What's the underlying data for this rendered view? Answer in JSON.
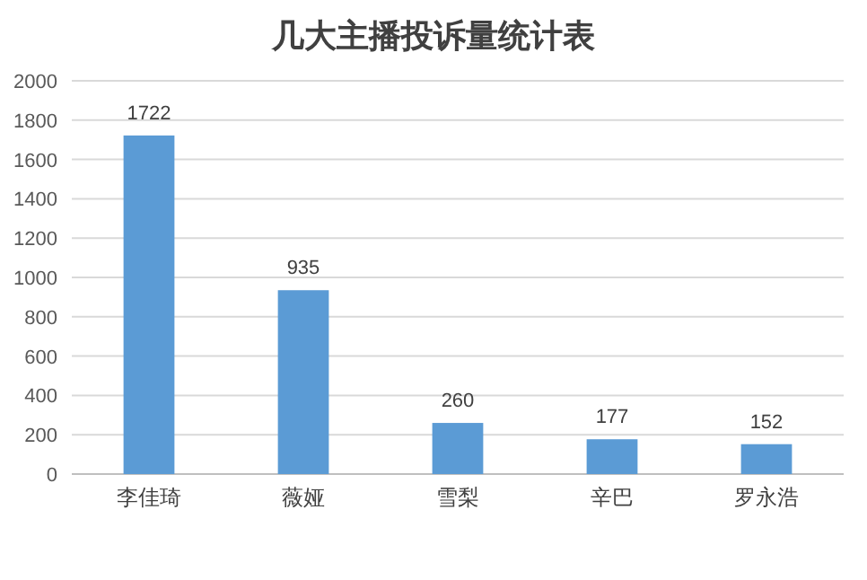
{
  "chart_data": {
    "type": "bar",
    "title": "几大主播投诉量统计表",
    "categories": [
      "李佳琦",
      "薇娅",
      "雪梨",
      "辛巴",
      "罗永浩"
    ],
    "values": [
      1722,
      935,
      260,
      177,
      152
    ],
    "color": "#5b9bd5",
    "ylim": [
      0,
      2000
    ],
    "yticks": [
      0,
      200,
      400,
      600,
      800,
      1000,
      1200,
      1400,
      1600,
      1800,
      2000
    ],
    "grid": "y",
    "data_labels": true
  }
}
